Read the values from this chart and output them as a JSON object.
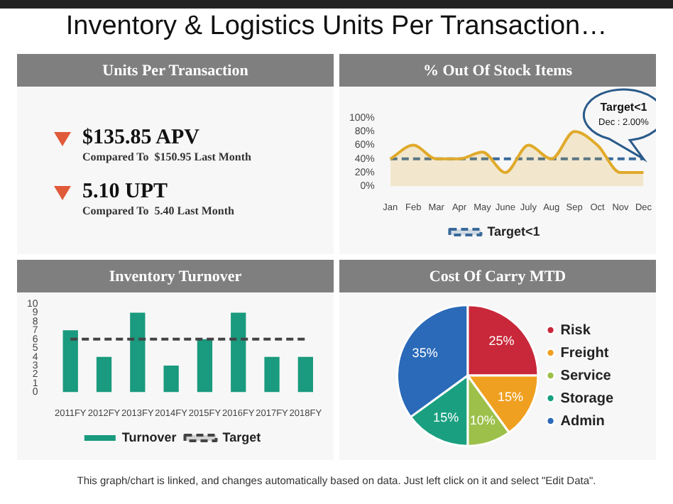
{
  "chart_data": [
    {
      "type": "other",
      "title": "Inventory & Logistics Units Per Transaction…",
      "annotations": [
        "This graph/chart is linked, and changes automatically based on data. Just left click on it and select \"Edit Data\"."
      ]
    },
    {
      "type": "other",
      "title": "Units Per Transaction",
      "annotations": [
        "$135.85 APV",
        "Compared To  $150.95 Last Month",
        "5.10 UPT",
        "Compared To  5.40 Last Month"
      ]
    },
    {
      "type": "area",
      "title": "% Out Of Stock Items",
      "categories": [
        "Jan",
        "Feb",
        "Mar",
        "Apr",
        "May",
        "June",
        "July",
        "Aug",
        "Sep",
        "Oct",
        "Nov",
        "Dec"
      ],
      "ylim": [
        0,
        100
      ],
      "yticks": [
        {
          "value": 0,
          "label": "0%"
        },
        {
          "value": 20,
          "label": "20%"
        },
        {
          "value": 40,
          "label": "40%"
        },
        {
          "value": 60,
          "label": "60%"
        },
        {
          "value": 80,
          "label": "80%"
        },
        {
          "value": 100,
          "label": "100%"
        }
      ],
      "grid": false,
      "legend": "bottom",
      "marker": "none",
      "series": [
        {
          "color": "#e0aa2a",
          "values": [
            40,
            60,
            40,
            40,
            50,
            20,
            60,
            40,
            80,
            60,
            20,
            20
          ]
        },
        {
          "name": "Target<1",
          "type": "line",
          "line_style": "dashed",
          "color": "#3a6a9a",
          "values": [
            40,
            40,
            40,
            40,
            40,
            40,
            40,
            40,
            40,
            40,
            40,
            40
          ]
        }
      ],
      "annotations": [
        "Target<1",
        "Dec : 2.00%"
      ]
    },
    {
      "type": "bar",
      "title": "Inventory Turnover",
      "categories": [
        "2011FY",
        "2012FY",
        "2013FY",
        "2014FY",
        "2015FY",
        "2016FY",
        "2017FY",
        "2018FY"
      ],
      "ylim": [
        0,
        10
      ],
      "yticks": [
        0,
        1,
        2,
        3,
        4,
        5,
        6,
        7,
        8,
        9,
        10
      ],
      "grid": false,
      "legend": "bottom",
      "marker": "none",
      "series": [
        {
          "name": "Turnover",
          "color": "#1a9a7e",
          "values": [
            7,
            4,
            9,
            3,
            6,
            9,
            4,
            4
          ]
        },
        {
          "name": "Target",
          "type": "line",
          "line_style": "dashed",
          "color": "#444444",
          "values": [
            6,
            6,
            6,
            6,
            6,
            6,
            6,
            6
          ]
        }
      ]
    },
    {
      "type": "pie",
      "title": "Cost Of Carry MTD",
      "legend": "right",
      "categories": [
        "Risk",
        "Freight",
        "Service",
        "Storage",
        "Admin"
      ],
      "values": [
        25,
        15,
        10,
        15,
        35
      ],
      "colors": [
        "#c8283a",
        "#f0a020",
        "#9cc04a",
        "#1aa080",
        "#2a6ab8"
      ],
      "value_labels": [
        "25%",
        "15%",
        "10%",
        "15%",
        "35%"
      ]
    }
  ]
}
